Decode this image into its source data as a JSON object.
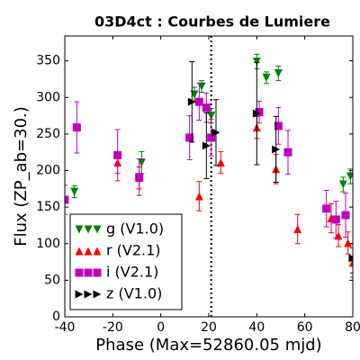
{
  "chart_data": {
    "type": "scatter",
    "title": "03D4ct : Courbes de Lumiere",
    "xlabel": "Phase (Max=52860.05 mjd)",
    "ylabel": "Flux (ZP_ab=30.)",
    "xlim": [
      -40,
      80
    ],
    "xticks": [
      -40,
      -20,
      0,
      20,
      40,
      60,
      80
    ],
    "ylim": [
      0,
      384
    ],
    "yticks": [
      0,
      50,
      100,
      150,
      200,
      250,
      300,
      350
    ],
    "vline": 21,
    "legend": "lower left",
    "series": [
      {
        "name": "g (V1.0)",
        "color": "#008000",
        "marker": "v",
        "x": [
          -36,
          -8,
          14,
          17,
          21,
          40,
          44,
          49,
          76,
          79
        ],
        "values": [
          171,
          211,
          304,
          315,
          275,
          349,
          327,
          333,
          181,
          192
        ],
        "errors": [
          8,
          15,
          10,
          8,
          10,
          10,
          8,
          10,
          10,
          10
        ]
      },
      {
        "name": "r (V2.1)",
        "color": "#ff0000",
        "marker": "^",
        "x": [
          -18,
          -9,
          16,
          25,
          40,
          48,
          57,
          71,
          74,
          78,
          80
        ],
        "values": [
          211,
          190,
          165,
          211,
          259,
          202,
          120,
          135,
          111,
          101,
          74
        ],
        "errors": [
          15,
          15,
          20,
          15,
          15,
          20,
          20,
          20,
          15,
          15,
          20
        ]
      },
      {
        "name": "i (V2.1)",
        "color": "#bf00bf",
        "marker": "s",
        "x": [
          -40,
          -35,
          -18,
          -9,
          12,
          16,
          19,
          21,
          41,
          49,
          53,
          69,
          73,
          77
        ],
        "values": [
          160,
          259,
          221,
          191,
          245,
          294,
          286,
          245,
          280,
          261,
          225,
          148,
          133,
          139
        ],
        "errors": [
          20,
          35,
          35,
          25,
          30,
          25,
          20,
          25,
          15,
          25,
          30,
          25,
          25,
          30
        ]
      },
      {
        "name": "z (V1.0)",
        "color": "#000000",
        "marker": ">",
        "x": [
          13,
          19,
          23,
          40,
          48,
          80
        ],
        "values": [
          294,
          234,
          252,
          278,
          229,
          80
        ],
        "errors": [
          55,
          45,
          45,
          70,
          45,
          20
        ]
      }
    ]
  }
}
